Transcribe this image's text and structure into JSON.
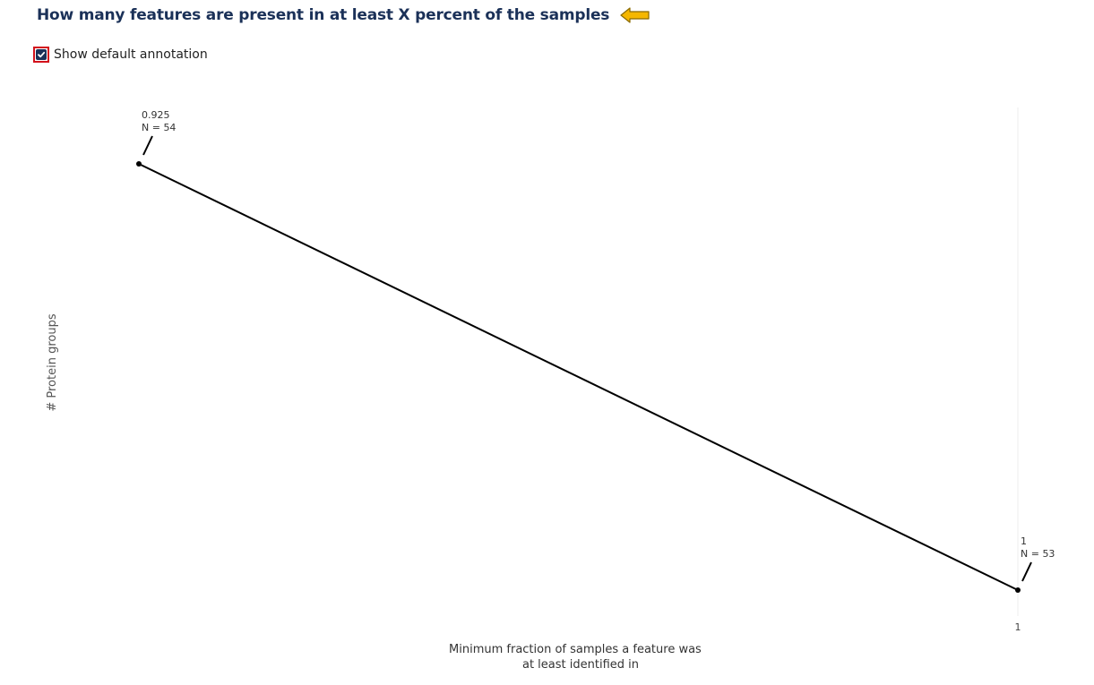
{
  "header": {
    "title": "How many features are present in at least X percent of the samples",
    "help_icon": "arrow-left-icon",
    "accent_color": "#f5b700"
  },
  "annotation_toggle": {
    "label": "Show default annotation",
    "checked": true,
    "highlight_color": "#d3121c",
    "checked_color": "#1b3158"
  },
  "chart_data": {
    "type": "line",
    "title": "",
    "xlabel": "Minimum fraction of samples a feature was at least identified in",
    "xlabel_lines": [
      "Minimum fraction of samples a feature was",
      "at least identified in"
    ],
    "ylabel": "# Protein groups",
    "x": [
      0.925,
      1
    ],
    "y": [
      54,
      53
    ],
    "x_tick_labels": [
      "1"
    ],
    "y_tick_labels": [],
    "grid": false,
    "legend": "none",
    "line_color": "#000000",
    "annotations": [
      {
        "x": 0.925,
        "y": 54,
        "lines": [
          "0.925",
          "N = 54"
        ]
      },
      {
        "x": 1,
        "y": 53,
        "lines": [
          "1",
          "N = 53"
        ]
      }
    ]
  }
}
